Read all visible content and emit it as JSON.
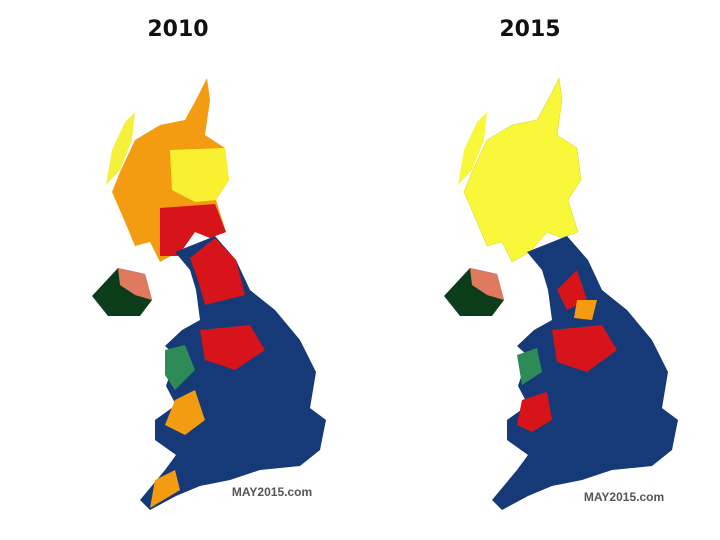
{
  "maps": [
    {
      "title": "2010",
      "credit": "MAY2015.com"
    },
    {
      "title": "2015",
      "credit": "MAY2015.com"
    }
  ]
}
